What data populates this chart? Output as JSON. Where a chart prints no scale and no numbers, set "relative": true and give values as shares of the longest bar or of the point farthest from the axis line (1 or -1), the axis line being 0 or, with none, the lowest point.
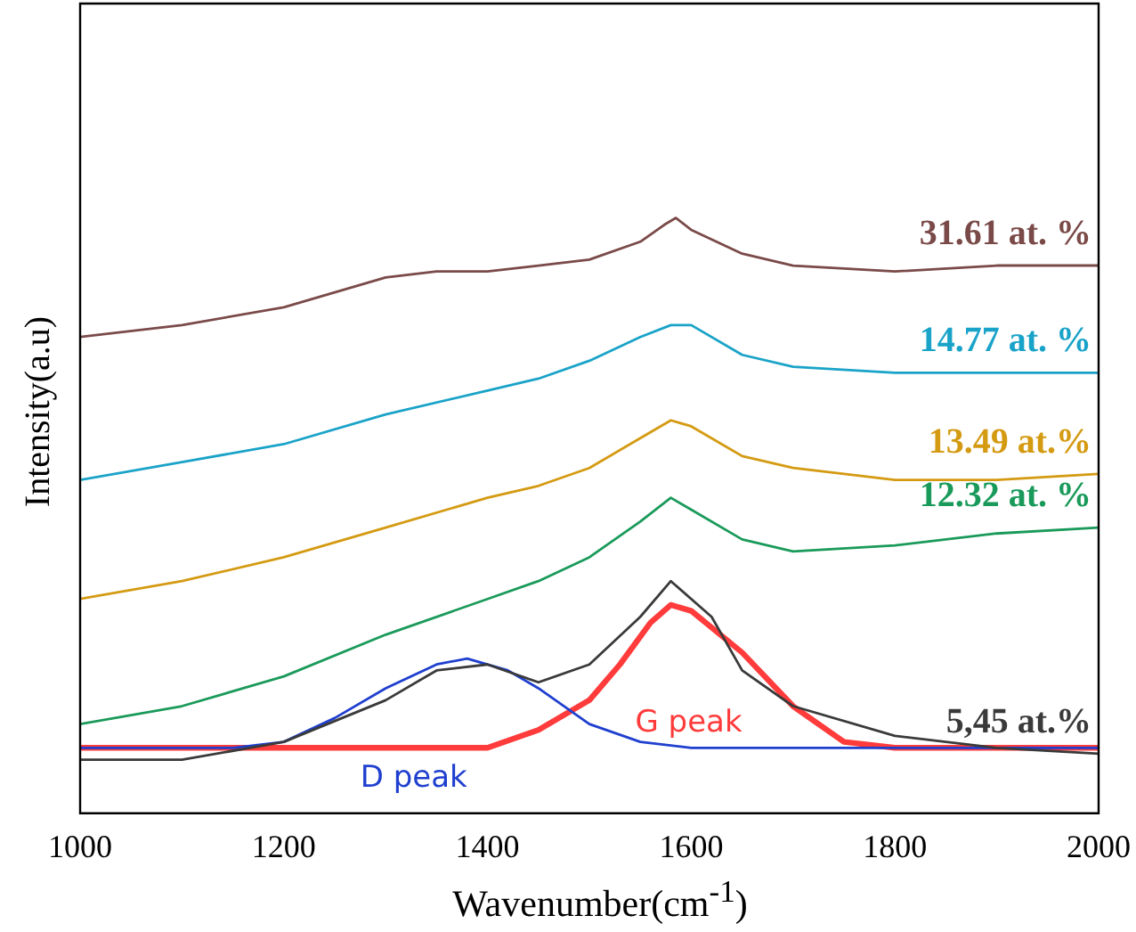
{
  "chart_data": {
    "type": "line",
    "xlabel": "Wavenumber(cm$^{-1}$)",
    "ylabel": "Intensity(a.u)",
    "relative": true,
    "xlim": [
      1000,
      2000
    ],
    "xticks": [
      1000,
      1200,
      1400,
      1600,
      1800,
      2000
    ],
    "legend": false,
    "grid": false,
    "marker": "none",
    "line_style": "solid",
    "series": [
      {
        "name": "31.61 at. %",
        "color": "#7a4a48",
        "x": [
          1000,
          1100,
          1200,
          1300,
          1350,
          1400,
          1450,
          1500,
          1550,
          1575,
          1585,
          1600,
          1650,
          1700,
          1800,
          1900,
          2000
        ],
        "values": [
          0.8,
          0.82,
          0.85,
          0.9,
          0.91,
          0.91,
          0.92,
          0.93,
          0.96,
          0.99,
          1.0,
          0.98,
          0.94,
          0.92,
          0.91,
          0.92,
          0.92
        ]
      },
      {
        "name": "14.77 at. %",
        "color": "#1aa3c8",
        "x": [
          1000,
          1100,
          1200,
          1300,
          1400,
          1450,
          1500,
          1550,
          1580,
          1600,
          1650,
          1700,
          1800,
          1900,
          2000
        ],
        "values": [
          0.56,
          0.59,
          0.62,
          0.67,
          0.71,
          0.73,
          0.76,
          0.8,
          0.82,
          0.82,
          0.77,
          0.75,
          0.74,
          0.74,
          0.74
        ]
      },
      {
        "name": "13.49 at.%",
        "color": "#d49a12",
        "x": [
          1000,
          1100,
          1200,
          1300,
          1400,
          1450,
          1500,
          1550,
          1580,
          1600,
          1650,
          1700,
          1800,
          1900,
          2000
        ],
        "values": [
          0.36,
          0.39,
          0.43,
          0.48,
          0.53,
          0.55,
          0.58,
          0.63,
          0.66,
          0.65,
          0.6,
          0.58,
          0.56,
          0.56,
          0.57
        ]
      },
      {
        "name": "12.32 at. %",
        "color": "#1a9a5a",
        "x": [
          1000,
          1100,
          1200,
          1300,
          1400,
          1450,
          1500,
          1550,
          1580,
          1600,
          1650,
          1700,
          1800,
          1900,
          2000
        ],
        "values": [
          0.15,
          0.18,
          0.23,
          0.3,
          0.36,
          0.39,
          0.43,
          0.49,
          0.53,
          0.51,
          0.46,
          0.44,
          0.45,
          0.47,
          0.48
        ]
      },
      {
        "name": "5,45 at.%",
        "color": "#3a3a3a",
        "x": [
          1000,
          1100,
          1200,
          1300,
          1350,
          1400,
          1450,
          1500,
          1550,
          1580,
          1620,
          1650,
          1700,
          1800,
          1900,
          2000
        ],
        "values": [
          0.09,
          0.09,
          0.12,
          0.19,
          0.24,
          0.25,
          0.22,
          0.25,
          0.33,
          0.39,
          0.33,
          0.24,
          0.18,
          0.13,
          0.11,
          0.1
        ]
      },
      {
        "name": "D peak",
        "color": "#1f3fcf",
        "x": [
          1000,
          1150,
          1200,
          1250,
          1300,
          1350,
          1380,
          1420,
          1450,
          1500,
          1550,
          1600,
          2000
        ],
        "values": [
          0.11,
          0.11,
          0.12,
          0.16,
          0.21,
          0.25,
          0.26,
          0.24,
          0.21,
          0.15,
          0.12,
          0.11,
          0.11
        ]
      },
      {
        "name": "G peak",
        "color": "#ff3b3b",
        "x": [
          1000,
          1400,
          1450,
          1500,
          1530,
          1560,
          1580,
          1600,
          1650,
          1700,
          1750,
          1800,
          2000
        ],
        "values": [
          0.11,
          0.11,
          0.14,
          0.19,
          0.25,
          0.32,
          0.35,
          0.34,
          0.27,
          0.18,
          0.12,
          0.11,
          0.11
        ]
      }
    ]
  }
}
